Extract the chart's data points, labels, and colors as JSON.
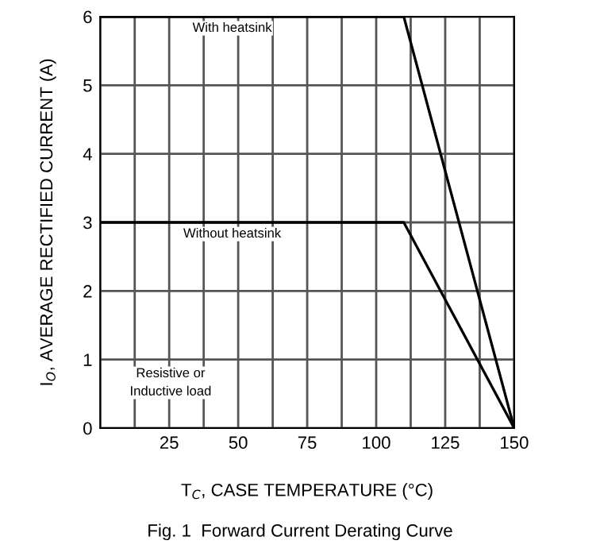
{
  "chart_data": {
    "type": "line",
    "title": "Fig. 1  Forward Current Derating Curve",
    "xlabel": "T$_{C}$, CASE TEMPERATURE (°C)",
    "ylabel": "I$_{O}$, AVERAGE RECTIFIED CURRENT (A)",
    "series": [
      {
        "name": "With heatsink",
        "color": "#000000",
        "x": [
          0,
          110,
          150
        ],
        "values": [
          6,
          6,
          0
        ]
      },
      {
        "name": "Without heatsink",
        "color": "#000000",
        "x": [
          0,
          110,
          150
        ],
        "values": [
          3,
          3,
          0
        ]
      }
    ],
    "annotations": [
      "Resistive or\nInductive load"
    ],
    "xlim": [
      0,
      150
    ],
    "ylim": [
      0,
      6
    ],
    "xticks": [
      {
        "value": 0,
        "label": null
      },
      {
        "value": 12.5,
        "label": null
      },
      25,
      {
        "value": 37.5,
        "label": null
      },
      50,
      {
        "value": 62.5,
        "label": null
      },
      75,
      {
        "value": 87.5,
        "label": null
      },
      100,
      {
        "value": 112.5,
        "label": null
      },
      125,
      {
        "value": 137.5,
        "label": null
      },
      150
    ],
    "yticks": [
      0,
      1,
      2,
      3,
      4,
      5,
      6
    ],
    "grid": true,
    "legend": false,
    "marker": "none",
    "line_style": "solid"
  }
}
